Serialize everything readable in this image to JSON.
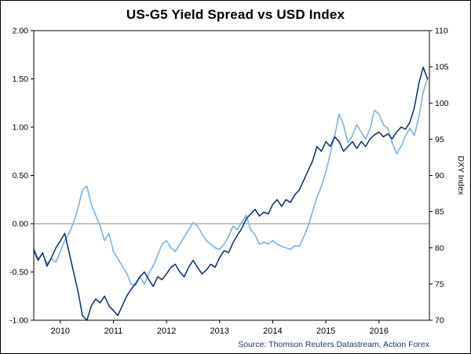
{
  "title": "US-G5 Yield Spread vs USD Index",
  "source": "Source: Thomson Reuters Datastream, Action Forex",
  "colors": {
    "spread_line": "#16386B",
    "dxy_line": "#7DB2E4",
    "zero_line": "#888888",
    "border": "#000000",
    "source_text": "#1F3864"
  },
  "chart_data": {
    "type": "line",
    "title": "US-G5 Yield Spread vs USD Index",
    "xlabel": "",
    "x_domain": [
      2009.5,
      2016.95
    ],
    "x_start": 2009.5,
    "x_step": 0.0833333,
    "x_ticks": [
      2010,
      2011,
      2012,
      2013,
      2014,
      2015,
      2016
    ],
    "x_tick_labels": [
      "2010",
      "2011",
      "2012",
      "2013",
      "2014",
      "2015",
      "2016"
    ],
    "grid": false,
    "zero_line": true,
    "legend": "none",
    "left_axis": {
      "min": -1.0,
      "max": 2.0,
      "tick_values": [
        2.0,
        1.5,
        1.0,
        0.5,
        0.0,
        -0.5,
        -1.0
      ],
      "tick_labels": [
        "2.00",
        "1.50",
        "1.00",
        "0.50",
        "0.00",
        "-0.50",
        "-1.00"
      ],
      "label": ""
    },
    "right_axis": {
      "min": 70,
      "max": 110,
      "tick_values": [
        110,
        105,
        100,
        95,
        90,
        85,
        80,
        75,
        70
      ],
      "tick_labels": [
        "110",
        "105",
        "100",
        "95",
        "90",
        "85",
        "80",
        "75",
        "70"
      ],
      "label": "DXY Index"
    },
    "series": [
      {
        "id": "dxy-index",
        "name": "USD Index (DXY)",
        "axis": "right",
        "color": "#7DB2E4",
        "values": [
          80.0,
          78.5,
          79.2,
          77.8,
          78.5,
          78.0,
          79.5,
          81.0,
          82.0,
          83.5,
          85.5,
          88.0,
          88.5,
          86.0,
          84.5,
          83.0,
          81.0,
          82.0,
          79.5,
          78.5,
          77.5,
          76.5,
          75.0,
          74.8,
          76.0,
          75.0,
          76.5,
          77.5,
          79.0,
          80.5,
          81.0,
          80.0,
          79.5,
          80.5,
          81.5,
          82.5,
          83.5,
          83.0,
          82.0,
          81.0,
          80.5,
          80.0,
          79.8,
          80.5,
          81.5,
          83.0,
          82.5,
          83.5,
          84.5,
          82.5,
          81.8,
          80.5,
          80.8,
          80.5,
          81.0,
          80.5,
          80.2,
          80.0,
          79.8,
          80.3,
          80.2,
          81.5,
          83.0,
          85.0,
          87.0,
          88.5,
          90.5,
          93.0,
          95.5,
          98.5,
          97.0,
          94.5,
          95.5,
          97.0,
          96.0,
          95.0,
          96.5,
          99.0,
          98.5,
          97.0,
          96.5,
          94.5,
          93.0,
          94.0,
          95.5,
          96.5,
          95.5,
          98.0,
          101.5,
          103.5
        ]
      },
      {
        "id": "us-g5-yield-spread",
        "name": "US-G5 Yield Spread",
        "axis": "left",
        "color": "#16386B",
        "values": [
          -0.28,
          -0.38,
          -0.3,
          -0.44,
          -0.35,
          -0.25,
          -0.18,
          -0.1,
          -0.3,
          -0.5,
          -0.7,
          -0.95,
          -1.0,
          -0.85,
          -0.78,
          -0.82,
          -0.75,
          -0.85,
          -0.9,
          -0.95,
          -0.85,
          -0.75,
          -0.68,
          -0.62,
          -0.55,
          -0.5,
          -0.58,
          -0.65,
          -0.55,
          -0.58,
          -0.52,
          -0.45,
          -0.42,
          -0.5,
          -0.55,
          -0.45,
          -0.38,
          -0.45,
          -0.52,
          -0.48,
          -0.42,
          -0.45,
          -0.35,
          -0.28,
          -0.3,
          -0.2,
          -0.12,
          -0.05,
          0.05,
          0.1,
          0.15,
          0.08,
          0.12,
          0.1,
          0.2,
          0.25,
          0.18,
          0.25,
          0.22,
          0.3,
          0.35,
          0.45,
          0.55,
          0.65,
          0.8,
          0.75,
          0.85,
          0.8,
          0.9,
          0.85,
          0.75,
          0.8,
          0.85,
          0.78,
          0.85,
          0.8,
          0.88,
          0.92,
          0.95,
          0.9,
          0.93,
          0.88,
          0.95,
          1.0,
          0.98,
          1.05,
          1.2,
          1.45,
          1.62,
          1.5
        ]
      }
    ]
  }
}
